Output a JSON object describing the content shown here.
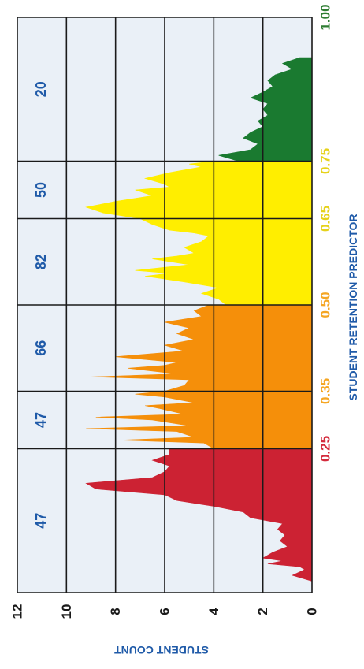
{
  "chart_data": {
    "type": "area",
    "xlabel": "STUDENT RETENTION PREDICTOR",
    "ylabel": "STUDENT COUNT",
    "xlim": [
      0.0,
      1.0
    ],
    "ylim": [
      0,
      12
    ],
    "y_ticks": [
      "0",
      "2",
      "4",
      "6",
      "8",
      "10",
      "12"
    ],
    "x_ticks": [
      {
        "label": "0.25",
        "value": 0.25,
        "color": "#d42a3c"
      },
      {
        "label": "0.35",
        "value": 0.35,
        "color": "#f5a623"
      },
      {
        "label": "0.50",
        "value": 0.5,
        "color": "#f5a623"
      },
      {
        "label": "0.65",
        "value": 0.65,
        "color": "#e6d21a"
      },
      {
        "label": "0.75",
        "value": 0.75,
        "color": "#e6d21a"
      },
      {
        "label": "1.00",
        "value": 1.0,
        "color": "#2e7d32"
      }
    ],
    "bands": [
      {
        "range": [
          0.0,
          0.25
        ],
        "count_label": "47",
        "color": "#cc2233"
      },
      {
        "range": [
          0.25,
          0.35
        ],
        "count_label": "47",
        "color": "#f58f0a"
      },
      {
        "range": [
          0.35,
          0.5
        ],
        "count_label": "66",
        "color": "#f58f0a"
      },
      {
        "range": [
          0.5,
          0.65
        ],
        "count_label": "82",
        "color": "#ffee00"
      },
      {
        "range": [
          0.65,
          0.75
        ],
        "count_label": "50",
        "color": "#ffee00"
      },
      {
        "range": [
          0.75,
          1.0
        ],
        "count_label": "20",
        "color": "#1a7a30"
      }
    ],
    "band_label_color": "#1f5aa8",
    "grid": true,
    "series": [
      {
        "color": "#cc2233",
        "x": [
          0.02,
          0.03,
          0.04,
          0.045,
          0.05,
          0.055,
          0.06,
          0.07,
          0.08,
          0.09,
          0.1,
          0.11,
          0.12,
          0.13,
          0.14,
          0.15,
          0.16,
          0.17,
          0.18,
          0.19,
          0.2,
          0.21,
          0.22,
          0.23,
          0.24,
          0.25
        ],
        "y": [
          0,
          0.8,
          0.3,
          0.5,
          1.8,
          1.2,
          2.0,
          1.6,
          1.0,
          1.3,
          1.1,
          1.4,
          1.2,
          2.5,
          2.8,
          4.0,
          5.5,
          6.0,
          8.8,
          9.2,
          6.5,
          6.0,
          5.8,
          6.5,
          5.8,
          5.8
        ]
      },
      {
        "color": "#f58f0a",
        "x": [
          0.25,
          0.26,
          0.265,
          0.27,
          0.28,
          0.285,
          0.29,
          0.3,
          0.305,
          0.31,
          0.32,
          0.325,
          0.33,
          0.34,
          0.345,
          0.35,
          0.36,
          0.37,
          0.375,
          0.38,
          0.39,
          0.395,
          0.4,
          0.41,
          0.42,
          0.43,
          0.44,
          0.45,
          0.46,
          0.47,
          0.48,
          0.49,
          0.5
        ],
        "y": [
          4.0,
          4.4,
          7.8,
          4.8,
          5.5,
          9.2,
          5.0,
          6.5,
          8.8,
          5.2,
          6.2,
          6.8,
          4.8,
          6.0,
          7.2,
          6.0,
          5.2,
          5.0,
          9.0,
          5.5,
          7.5,
          6.0,
          5.5,
          8.0,
          5.2,
          6.0,
          4.8,
          5.5,
          5.0,
          6.0,
          4.5,
          4.8,
          4.2
        ]
      },
      {
        "color": "#ffee00",
        "x": [
          0.5,
          0.51,
          0.52,
          0.53,
          0.54,
          0.55,
          0.555,
          0.56,
          0.57,
          0.58,
          0.585,
          0.59,
          0.6,
          0.61,
          0.62,
          0.625,
          0.63,
          0.64,
          0.65,
          0.66,
          0.67,
          0.68,
          0.69,
          0.7,
          0.705,
          0.71,
          0.72,
          0.73,
          0.74,
          0.745,
          0.75
        ],
        "y": [
          3.5,
          3.8,
          4.5,
          3.8,
          5.2,
          6.8,
          5.8,
          7.2,
          5.0,
          6.5,
          5.5,
          4.8,
          5.2,
          4.5,
          4.2,
          4.8,
          5.8,
          6.5,
          7.0,
          8.5,
          9.2,
          8.0,
          6.5,
          7.2,
          5.8,
          6.0,
          6.8,
          5.8,
          4.5,
          5.0,
          4.0
        ]
      },
      {
        "color": "#1a7a30",
        "x": [
          0.75,
          0.76,
          0.77,
          0.78,
          0.79,
          0.8,
          0.81,
          0.82,
          0.83,
          0.84,
          0.85,
          0.86,
          0.87,
          0.88,
          0.89,
          0.9,
          0.91,
          0.92,
          0.93
        ],
        "y": [
          3.0,
          3.8,
          2.5,
          2.2,
          2.8,
          2.5,
          2.0,
          2.2,
          1.8,
          2.0,
          1.8,
          2.5,
          2.0,
          1.6,
          1.8,
          1.5,
          0.8,
          1.2,
          0.5
        ]
      }
    ]
  }
}
